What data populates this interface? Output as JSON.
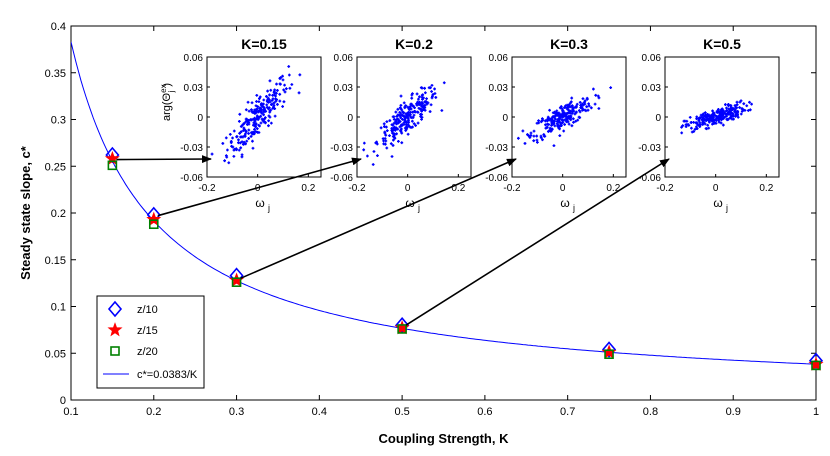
{
  "chart_data": {
    "type": "scatter",
    "xlabel": "Coupling Strength, K",
    "ylabel": "Steady state slope, c*",
    "xlim": [
      0.1,
      1.0
    ],
    "ylim": [
      0,
      0.4
    ],
    "xticks": [
      "0.1",
      "0.2",
      "0.3",
      "0.4",
      "0.5",
      "0.6",
      "0.7",
      "0.8",
      "0.9",
      "1"
    ],
    "yticks": [
      "0",
      "0.05",
      "0.1",
      "0.15",
      "0.2",
      "0.25",
      "0.3",
      "0.35",
      "0.4"
    ],
    "fit": {
      "label": "c*=0.0383/K",
      "coef": 0.0383,
      "color": "#0000ff"
    },
    "series": [
      {
        "name": "z/10",
        "marker": "diamond",
        "color": "#0000ff",
        "x": [
          0.15,
          0.2,
          0.3,
          0.5,
          0.75,
          1.0
        ],
        "y": [
          0.262,
          0.198,
          0.133,
          0.08,
          0.054,
          0.042
        ]
      },
      {
        "name": "z/15",
        "marker": "star",
        "color": "#ff0000",
        "x": [
          0.15,
          0.2,
          0.3,
          0.5,
          0.75,
          1.0
        ],
        "y": [
          0.258,
          0.193,
          0.128,
          0.077,
          0.051,
          0.038
        ]
      },
      {
        "name": "z/20",
        "marker": "square",
        "color": "#008000",
        "x": [
          0.15,
          0.2,
          0.3,
          0.5,
          0.75,
          1.0
        ],
        "y": [
          0.251,
          0.188,
          0.126,
          0.076,
          0.049,
          0.037
        ]
      }
    ],
    "insets": [
      {
        "title": "K=0.15",
        "slope": 0.27,
        "spread": 0.01,
        "from_x": 0.15,
        "from_y": 0.255
      },
      {
        "title": "K=0.2",
        "slope": 0.2,
        "spread": 0.008,
        "from_x": 0.2,
        "from_y": 0.195
      },
      {
        "title": "K=0.3",
        "slope": 0.13,
        "spread": 0.006,
        "from_x": 0.3,
        "from_y": 0.128
      },
      {
        "title": "K=0.5",
        "slope": 0.08,
        "spread": 0.004,
        "from_x": 0.5,
        "from_y": 0.078
      }
    ],
    "inset_axes": {
      "xlim": [
        -0.2,
        0.25
      ],
      "ylim": [
        -0.06,
        0.06
      ],
      "xticks": [
        "-0.2",
        "0",
        "0.2"
      ],
      "yticks": [
        "0.06",
        "0.03",
        "0",
        "-0.03",
        "-0.06"
      ],
      "xlabel": "ω",
      "xlabel_sub": "j",
      "ylabel": "arg(Θ",
      "ylabel_sup": "ex",
      "ylabel_sub": "j",
      "ylabel_end": ")"
    }
  }
}
